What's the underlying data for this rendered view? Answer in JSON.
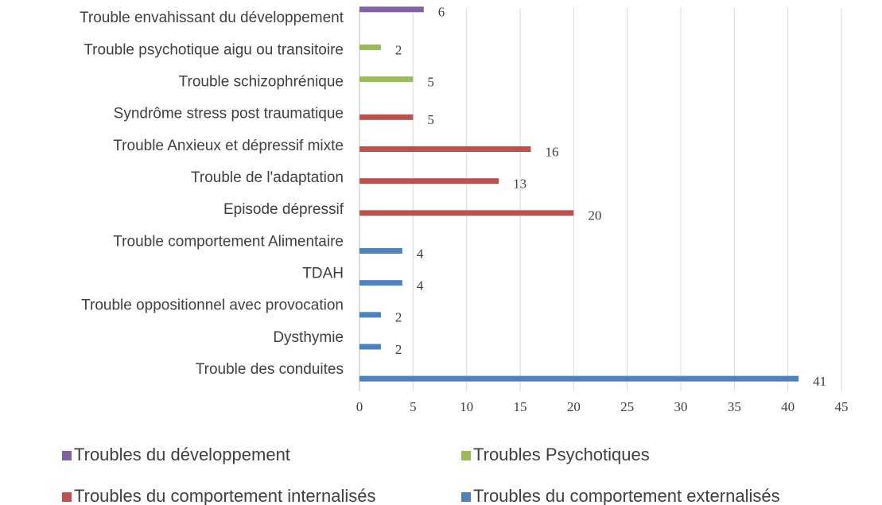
{
  "chart_data": {
    "type": "bar",
    "orientation": "horizontal",
    "categories": [
      "Trouble envahissant du développement",
      "Trouble psychotique aigu ou transitoire",
      "Trouble schizophrénique",
      "Syndrôme stress post traumatique",
      "Trouble Anxieux et dépressif mixte",
      "Trouble de l'adaptation",
      "Episode dépressif",
      "Trouble comportement Alimentaire",
      "TDAH",
      "Trouble oppositionnel avec provocation",
      "Dysthymie",
      "Trouble des conduites"
    ],
    "series": [
      {
        "name": "Troubles du développement",
        "color": "#8064a2",
        "values": [
          6,
          null,
          null,
          null,
          null,
          null,
          null,
          null,
          null,
          null,
          null,
          null
        ]
      },
      {
        "name": "Troubles Psychotiques",
        "color": "#9bbb59",
        "values": [
          null,
          2,
          5,
          null,
          null,
          null,
          null,
          null,
          null,
          null,
          null,
          null
        ]
      },
      {
        "name": "Troubles du comportement internalisés",
        "color": "#c0504d",
        "values": [
          null,
          null,
          null,
          5,
          16,
          13,
          20,
          null,
          null,
          null,
          null,
          null
        ]
      },
      {
        "name": "Troubles du comportement externalisés",
        "color": "#4f81bd",
        "values": [
          null,
          null,
          null,
          null,
          null,
          null,
          null,
          4,
          4,
          2,
          2,
          41
        ]
      }
    ],
    "xlim": [
      0,
      45
    ],
    "xticks": [
      0,
      5,
      10,
      15,
      20,
      25,
      30,
      35,
      40,
      45
    ],
    "grid": true,
    "legend": "bottom"
  }
}
